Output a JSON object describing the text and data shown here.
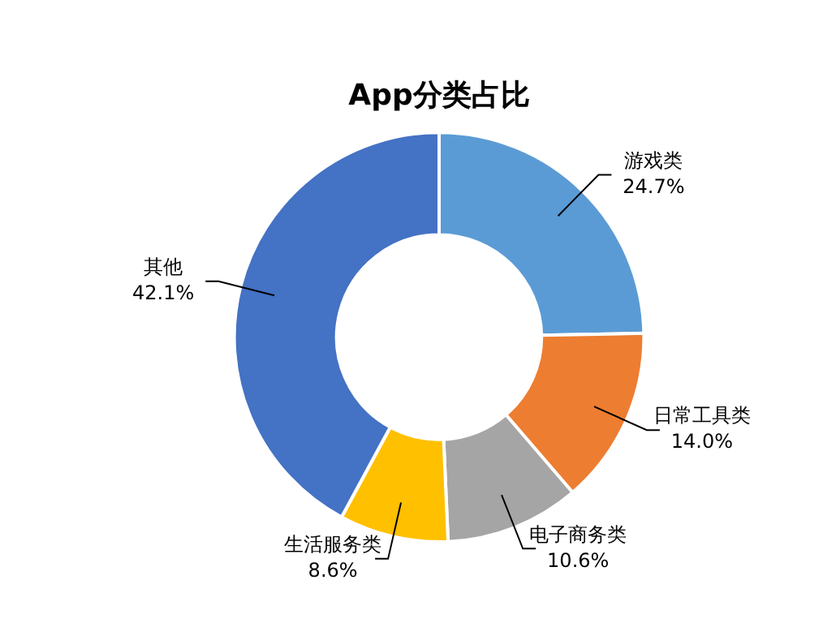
{
  "chart_data": {
    "type": "donut",
    "title": "App分类占比",
    "categories": [
      "游戏类",
      "日常工具类",
      "电子商务类",
      "生活服务类",
      "其他"
    ],
    "values": [
      24.7,
      14.0,
      10.6,
      8.6,
      42.1
    ],
    "colors": [
      "#5b9bd5",
      "#ed7d31",
      "#a5a5a5",
      "#ffc000",
      "#4472c4"
    ],
    "value_labels": [
      "24.7%",
      "14.0%",
      "10.6%",
      "8.6%",
      "42.1%"
    ],
    "legend": false
  }
}
